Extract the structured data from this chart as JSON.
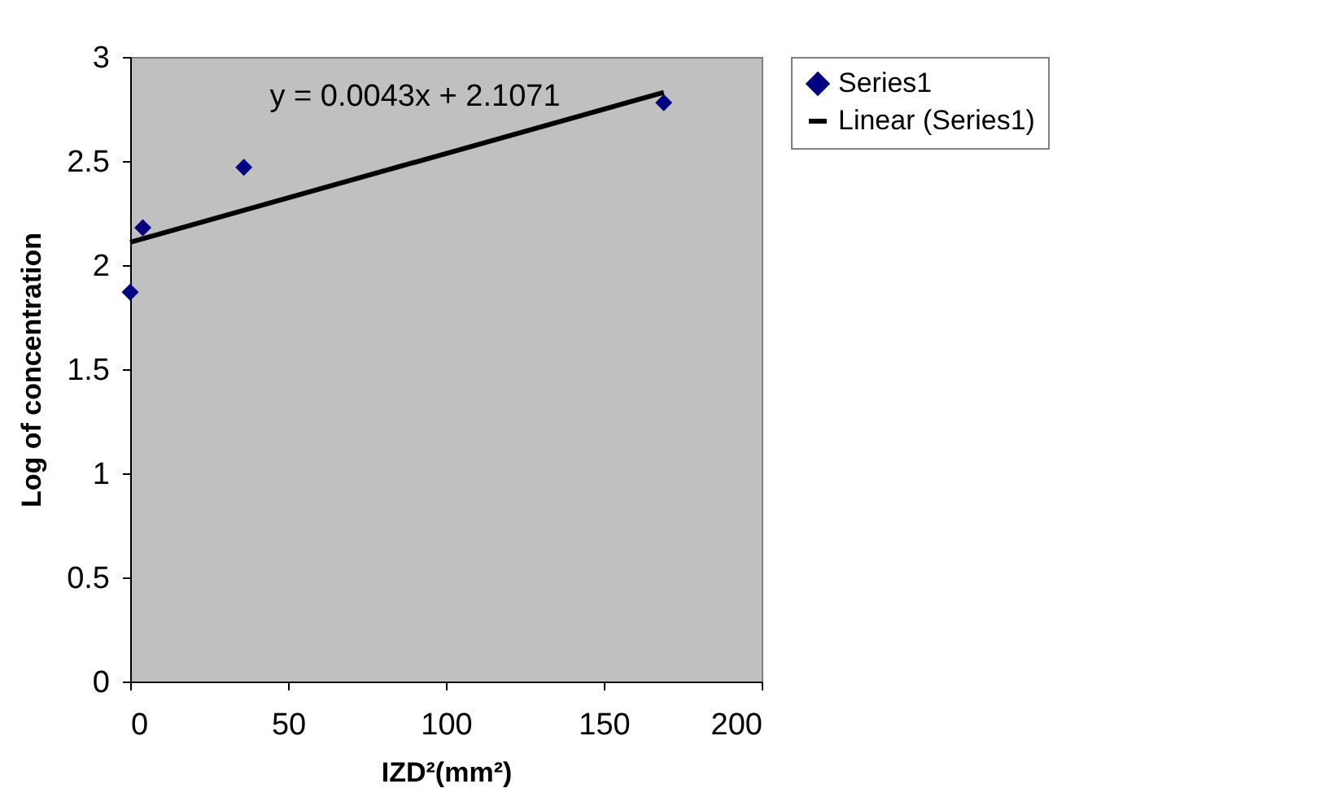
{
  "chart_data": {
    "type": "scatter",
    "xlabel": "IZD²(mm²)",
    "ylabel": "Log of concentration",
    "series": [
      {
        "name": "Series1",
        "color": "#000080",
        "marker": "diamond",
        "x": [
          0,
          4,
          36,
          169
        ],
        "values": [
          1.87,
          2.18,
          2.47,
          2.78
        ]
      },
      {
        "name": "Linear (Series1)",
        "type": "line",
        "color": "#000000",
        "line_style": "solid",
        "x": [
          0,
          169
        ],
        "values": [
          2.11,
          2.83
        ]
      }
    ],
    "annotations": [
      "y = 0.0043x + 2.1071"
    ],
    "xlim": [
      0,
      200
    ],
    "xticks": [
      0,
      50,
      100,
      150,
      200
    ],
    "ylim": [
      0,
      3
    ],
    "yticks": [
      0,
      0.5,
      1,
      1.5,
      2,
      2.5,
      3
    ],
    "grid": false,
    "legend": "right"
  }
}
